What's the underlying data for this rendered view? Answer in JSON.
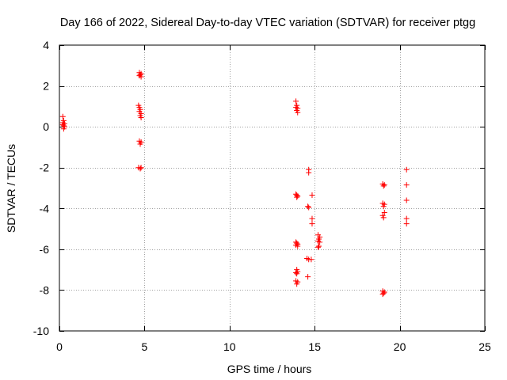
{
  "chart_data": {
    "type": "scatter",
    "title": "Day 166 of 2022, Sidereal Day-to-day VTEC variation (SDTVAR) for receiver ptgg",
    "xlabel": "GPS time / hours",
    "ylabel": "SDTVAR / TECUs",
    "xlim": [
      0,
      25
    ],
    "ylim": [
      -10,
      4
    ],
    "xticks": [
      0,
      5,
      10,
      15,
      20,
      25
    ],
    "yticks": [
      -10,
      -8,
      -6,
      -4,
      -2,
      0,
      2,
      4
    ],
    "grid": true,
    "marker": "+",
    "color": "#ff0000",
    "series": [
      {
        "name": "SDTVAR",
        "points": [
          [
            0.2,
            0.5
          ],
          [
            0.25,
            0.3
          ],
          [
            0.2,
            0.2
          ],
          [
            0.3,
            0.15
          ],
          [
            0.2,
            0.1
          ],
          [
            0.25,
            0.05
          ],
          [
            0.3,
            0.0
          ],
          [
            0.25,
            -0.1
          ],
          [
            4.7,
            2.65
          ],
          [
            4.8,
            2.6
          ],
          [
            4.75,
            2.55
          ],
          [
            4.7,
            2.5
          ],
          [
            4.8,
            2.45
          ],
          [
            4.65,
            1.05
          ],
          [
            4.7,
            0.95
          ],
          [
            4.75,
            0.85
          ],
          [
            4.7,
            0.75
          ],
          [
            4.8,
            0.65
          ],
          [
            4.75,
            0.55
          ],
          [
            4.8,
            0.45
          ],
          [
            4.7,
            -0.7
          ],
          [
            4.8,
            -0.75
          ],
          [
            4.75,
            -0.85
          ],
          [
            4.65,
            -2.0
          ],
          [
            4.75,
            -2.05
          ],
          [
            4.8,
            -2.0
          ],
          [
            13.9,
            1.25
          ],
          [
            13.95,
            1.05
          ],
          [
            13.9,
            0.95
          ],
          [
            14.0,
            0.9
          ],
          [
            13.95,
            0.8
          ],
          [
            14.0,
            0.7
          ],
          [
            13.9,
            -3.3
          ],
          [
            13.95,
            -3.35
          ],
          [
            14.0,
            -3.4
          ],
          [
            13.95,
            -3.45
          ],
          [
            13.9,
            -5.65
          ],
          [
            13.95,
            -5.7
          ],
          [
            14.0,
            -5.75
          ],
          [
            13.9,
            -5.8
          ],
          [
            14.0,
            -5.85
          ],
          [
            13.95,
            -7.0
          ],
          [
            14.0,
            -7.1
          ],
          [
            13.9,
            -7.15
          ],
          [
            13.95,
            -7.2
          ],
          [
            13.9,
            -7.55
          ],
          [
            14.0,
            -7.6
          ],
          [
            13.95,
            -7.7
          ],
          [
            14.65,
            -2.1
          ],
          [
            14.65,
            -2.25
          ],
          [
            14.6,
            -3.9
          ],
          [
            14.65,
            -3.95
          ],
          [
            14.55,
            -6.45
          ],
          [
            14.65,
            -6.5
          ],
          [
            14.8,
            -6.5
          ],
          [
            14.6,
            -7.35
          ],
          [
            14.85,
            -3.35
          ],
          [
            14.85,
            -4.5
          ],
          [
            14.85,
            -4.75
          ],
          [
            15.2,
            -5.3
          ],
          [
            15.3,
            -5.4
          ],
          [
            15.25,
            -5.5
          ],
          [
            15.2,
            -5.6
          ],
          [
            15.3,
            -5.65
          ],
          [
            15.25,
            -5.85
          ],
          [
            15.2,
            -5.9
          ],
          [
            19.0,
            -2.8
          ],
          [
            19.1,
            -2.85
          ],
          [
            19.05,
            -2.9
          ],
          [
            19.0,
            -3.75
          ],
          [
            19.1,
            -3.8
          ],
          [
            19.05,
            -3.9
          ],
          [
            19.1,
            -4.2
          ],
          [
            19.0,
            -4.35
          ],
          [
            19.05,
            -4.45
          ],
          [
            19.0,
            -8.05
          ],
          [
            19.1,
            -8.1
          ],
          [
            19.05,
            -8.15
          ],
          [
            19.0,
            -8.2
          ],
          [
            20.4,
            -2.1
          ],
          [
            20.4,
            -2.85
          ],
          [
            20.4,
            -3.6
          ],
          [
            20.4,
            -4.5
          ],
          [
            20.4,
            -4.75
          ]
        ]
      }
    ]
  }
}
